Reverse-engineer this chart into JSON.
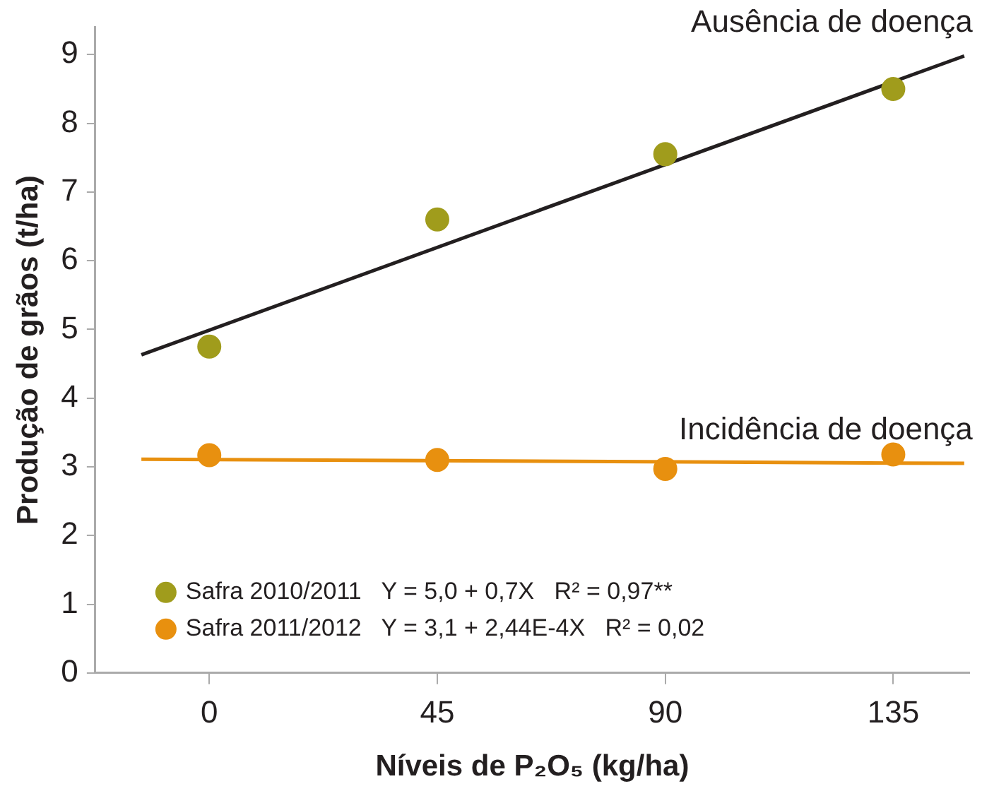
{
  "chart_data": {
    "type": "scatter",
    "xlabel": "Níveis de P₂O₅ (kg/ha)",
    "ylabel": "Produção de grãos (t/ha)",
    "xlim": [
      -22.5,
      150
    ],
    "xticks": [
      0,
      45,
      90,
      135
    ],
    "ylim": [
      0,
      9.4
    ],
    "yticks": [
      0,
      1,
      2,
      3,
      4,
      5,
      6,
      7,
      8,
      9
    ],
    "grid": false,
    "legend": "bottom left",
    "marker": "circle",
    "series": [
      {
        "type": "scatter",
        "name": "Safra 2010/2011   Y = 5,0 + 0,7X   R² = 0,97**",
        "color": "#a09c1c",
        "x": [
          0,
          45,
          90,
          135
        ],
        "values": [
          4.75,
          6.6,
          7.55,
          8.5
        ]
      },
      {
        "type": "scatter",
        "name": "Safra 2011/2012   Y = 3,1 + 2,44E-4X   R² = 0,02",
        "color": "#e8900f",
        "x": [
          0,
          45,
          90,
          135
        ],
        "values": [
          3.17,
          3.1,
          2.97,
          3.18
        ]
      },
      {
        "type": "line",
        "color": "#231f20",
        "marker": "none",
        "x": [
          -13.4,
          149
        ],
        "values": [
          4.63,
          8.98
        ]
      },
      {
        "type": "line",
        "color": "#e8900f",
        "marker": "none",
        "x": [
          -13.4,
          149
        ],
        "values": [
          3.11,
          3.05
        ]
      }
    ],
    "annotations": [
      {
        "text": "Ausência de doença",
        "x": 149,
        "y": 8.98
      },
      {
        "text": "Incidência de doença",
        "x": 149,
        "y": 3.05
      }
    ]
  }
}
